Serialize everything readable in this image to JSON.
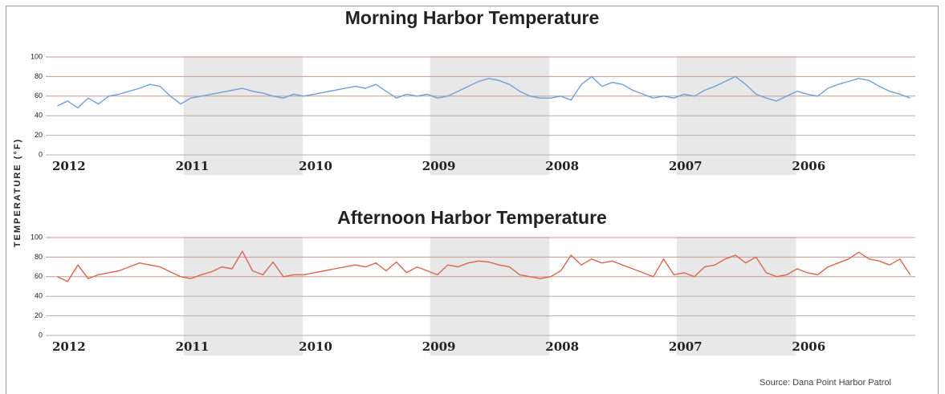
{
  "y_label": "TEMPERATURE (°F)",
  "source": "Source:  Dana Point Harbor Patrol",
  "chart_data": [
    {
      "type": "line",
      "title": "Morning Harbor Temperature",
      "color": "#6f9fd8",
      "categories": [
        "2012",
        null,
        null,
        null,
        null,
        null,
        null,
        null,
        null,
        null,
        null,
        null,
        "2011",
        null,
        null,
        null,
        null,
        null,
        null,
        null,
        null,
        null,
        null,
        null,
        "2010",
        null,
        null,
        null,
        null,
        null,
        null,
        null,
        null,
        null,
        null,
        null,
        "2009",
        null,
        null,
        null,
        null,
        null,
        null,
        null,
        null,
        null,
        null,
        null,
        "2008",
        null,
        null,
        null,
        null,
        null,
        null,
        null,
        null,
        null,
        null,
        null,
        "2007",
        null,
        null,
        null,
        null,
        null,
        null,
        null,
        null,
        null,
        null,
        null,
        "2006",
        null,
        null,
        null,
        null,
        null,
        null,
        null,
        null,
        null,
        null,
        null
      ],
      "values": [
        50,
        55,
        48,
        58,
        52,
        60,
        62,
        65,
        68,
        72,
        70,
        60,
        52,
        58,
        60,
        62,
        64,
        66,
        68,
        65,
        63,
        60,
        58,
        62,
        60,
        62,
        64,
        66,
        68,
        70,
        68,
        72,
        65,
        58,
        62,
        60,
        62,
        58,
        60,
        65,
        70,
        75,
        78,
        76,
        72,
        65,
        60,
        58,
        58,
        60,
        56,
        72,
        80,
        70,
        74,
        72,
        66,
        62,
        58,
        60,
        58,
        62,
        60,
        66,
        70,
        75,
        80,
        72,
        62,
        58,
        55,
        60,
        65,
        62,
        60,
        68,
        72,
        75,
        78,
        76,
        70,
        65,
        62,
        58
      ],
      "ylim": [
        0,
        100
      ],
      "yticks": [
        0,
        20,
        40,
        60,
        80,
        100
      ],
      "grid": true
    },
    {
      "type": "line",
      "title": "Afternoon Harbor Temperature",
      "color": "#d9654e",
      "categories": [
        "2012",
        null,
        null,
        null,
        null,
        null,
        null,
        null,
        null,
        null,
        null,
        null,
        "2011",
        null,
        null,
        null,
        null,
        null,
        null,
        null,
        null,
        null,
        null,
        null,
        "2010",
        null,
        null,
        null,
        null,
        null,
        null,
        null,
        null,
        null,
        null,
        null,
        "2009",
        null,
        null,
        null,
        null,
        null,
        null,
        null,
        null,
        null,
        null,
        null,
        "2008",
        null,
        null,
        null,
        null,
        null,
        null,
        null,
        null,
        null,
        null,
        null,
        "2007",
        null,
        null,
        null,
        null,
        null,
        null,
        null,
        null,
        null,
        null,
        null,
        "2006",
        null,
        null,
        null,
        null,
        null,
        null,
        null,
        null,
        null,
        null,
        null
      ],
      "values": [
        60,
        55,
        72,
        58,
        62,
        64,
        66,
        70,
        74,
        72,
        70,
        65,
        60,
        58,
        62,
        65,
        70,
        68,
        86,
        66,
        62,
        75,
        60,
        62,
        62,
        64,
        66,
        68,
        70,
        72,
        70,
        74,
        66,
        75,
        64,
        70,
        66,
        62,
        72,
        70,
        74,
        76,
        75,
        72,
        70,
        62,
        60,
        58,
        60,
        66,
        82,
        72,
        78,
        74,
        76,
        72,
        68,
        64,
        60,
        78,
        62,
        64,
        60,
        70,
        72,
        78,
        82,
        74,
        80,
        64,
        60,
        62,
        68,
        64,
        62,
        70,
        74,
        78,
        85,
        78,
        76,
        72,
        78,
        62
      ],
      "ylim": [
        0,
        100
      ],
      "yticks": [
        0,
        20,
        40,
        60,
        80,
        100
      ],
      "grid": true
    }
  ]
}
